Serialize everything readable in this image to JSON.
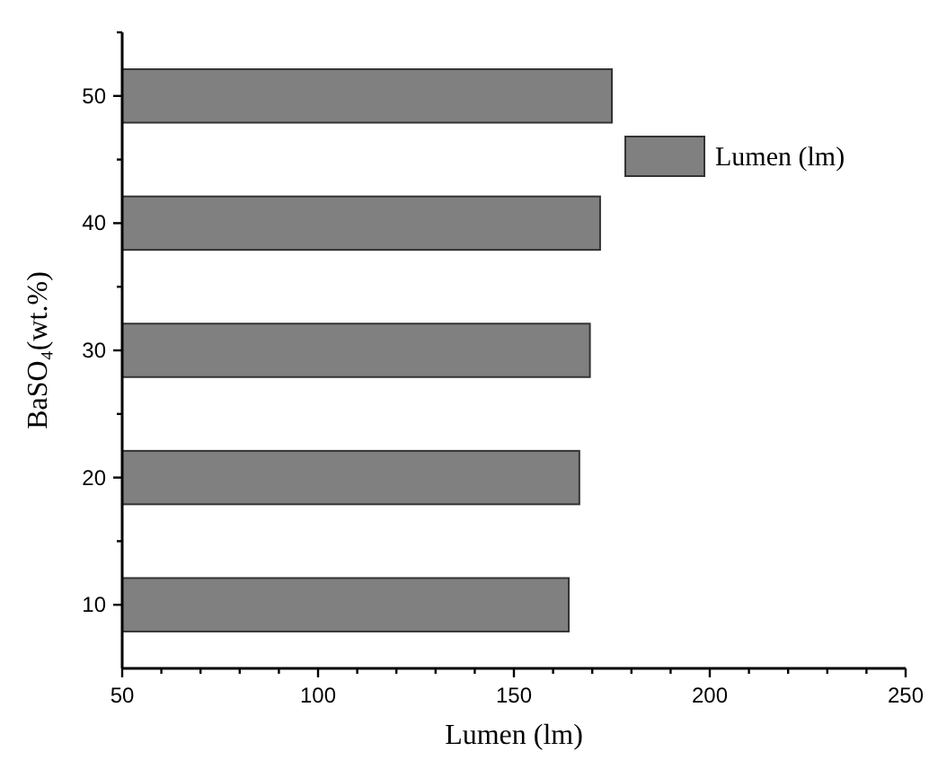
{
  "chart_data": {
    "type": "bar",
    "orientation": "horizontal",
    "xlabel": "Lumen (lm)",
    "ylabel": "BaSO₄(wt.%)",
    "categories": [
      "50",
      "40",
      "30",
      "20",
      "10"
    ],
    "series": [
      {
        "name": "Lumen (lm)",
        "color": "#808080",
        "values": [
          175,
          172,
          169.4,
          166.7,
          164
        ]
      }
    ],
    "xlim": [
      50,
      250
    ],
    "xticks": [
      50,
      {
        "value": 60,
        "label": null
      },
      {
        "value": 70,
        "label": null
      },
      {
        "value": 80,
        "label": null
      },
      {
        "value": 90,
        "label": null
      },
      100,
      {
        "value": 110,
        "label": null
      },
      {
        "value": 120,
        "label": null
      },
      {
        "value": 130,
        "label": null
      },
      {
        "value": 140,
        "label": null
      },
      150,
      {
        "value": 160,
        "label": null
      },
      {
        "value": 170,
        "label": null
      },
      {
        "value": 180,
        "label": null
      },
      {
        "value": 190,
        "label": null
      },
      200,
      {
        "value": 210,
        "label": null
      },
      {
        "value": 220,
        "label": null
      },
      {
        "value": 230,
        "label": null
      },
      {
        "value": 240,
        "label": null
      },
      250
    ],
    "legend": "top right",
    "grid": false
  }
}
